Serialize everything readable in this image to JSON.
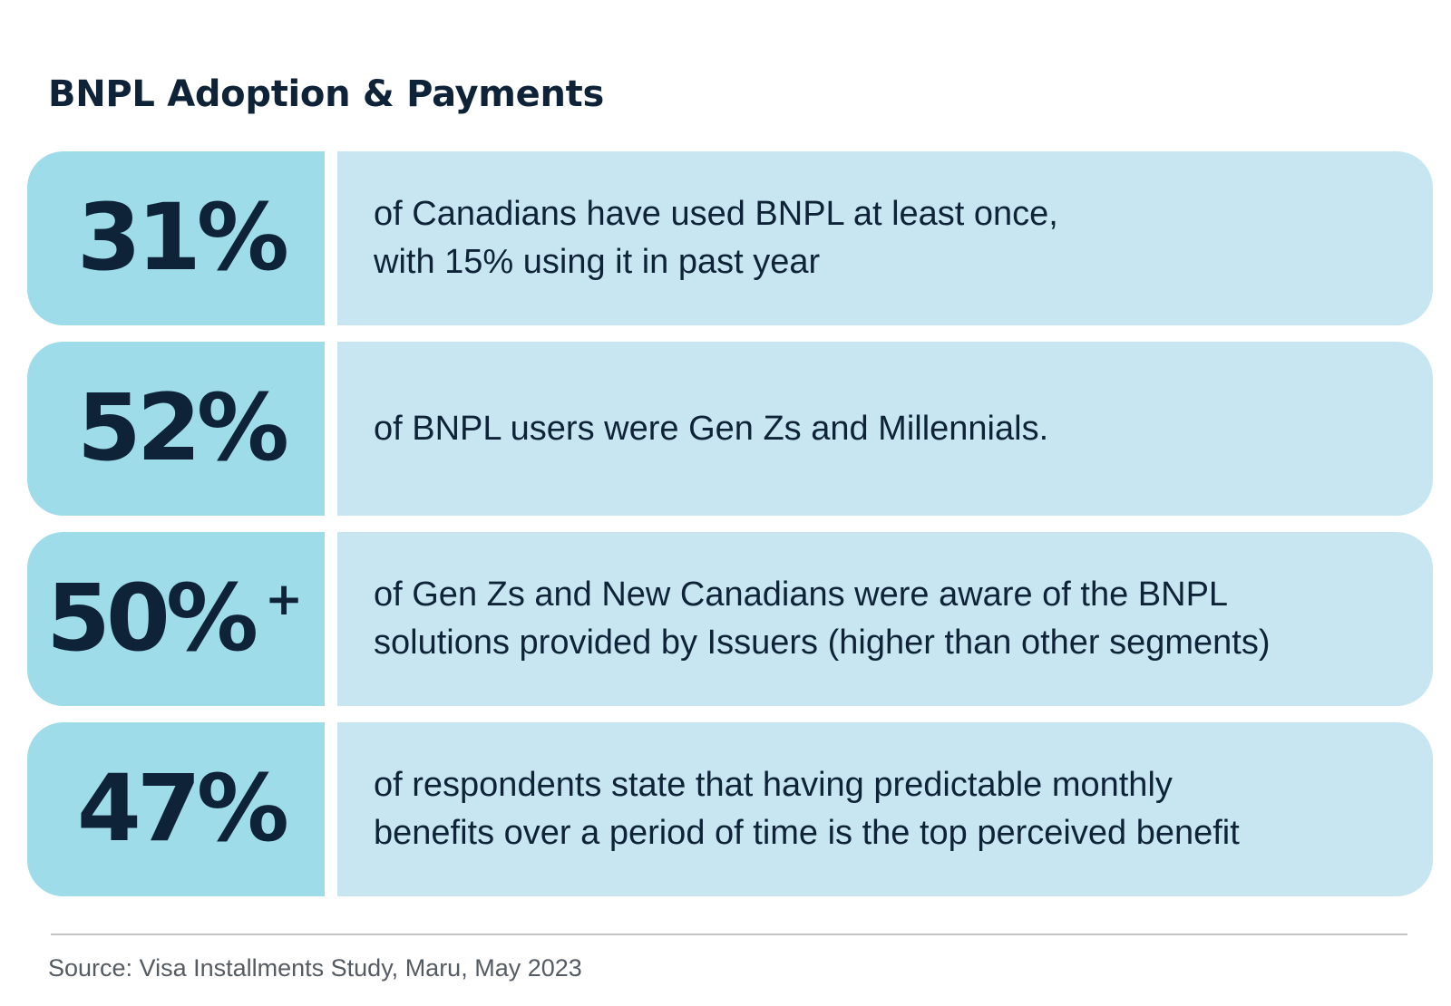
{
  "title": "BNPL Adoption & Payments",
  "colors": {
    "stat_background": "#9ddce8",
    "description_background": "#c8e6f1",
    "text": "#0f2338",
    "source_text": "#555b62",
    "divider": "#c4c4c4"
  },
  "stats": [
    {
      "value": "31%",
      "suffix": "",
      "lines": [
        "of Canadians have used BNPL at least once,",
        "with 15% using it in past year"
      ]
    },
    {
      "value": "52%",
      "suffix": "",
      "lines": [
        "of BNPL users were Gen Zs and Millennials."
      ]
    },
    {
      "value": "50%",
      "suffix": "+",
      "lines": [
        "of Gen Zs and New Canadians were aware of the BNPL",
        "solutions provided by Issuers (higher than other segments)"
      ]
    },
    {
      "value": "47%",
      "suffix": "",
      "lines": [
        "of respondents state that having predictable monthly",
        "benefits over a period of time is the top perceived benefit"
      ]
    }
  ],
  "source": "Source: Visa Installments Study, Maru, May 2023"
}
